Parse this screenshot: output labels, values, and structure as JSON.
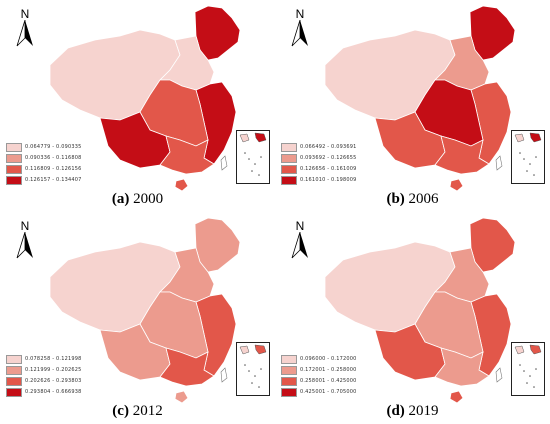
{
  "panels": [
    {
      "id": "a",
      "caption_label": "(a)",
      "caption_year": "2000",
      "legend": [
        {
          "range": "0.064779 - 0.090335",
          "color": "#f6d3cf"
        },
        {
          "range": "0.090336 - 0.116808",
          "color": "#ec9b8e"
        },
        {
          "range": "0.116809 - 0.126156",
          "color": "#e2574a"
        },
        {
          "range": "0.126157 - 0.134407",
          "color": "#c40d16"
        }
      ]
    },
    {
      "id": "b",
      "caption_label": "(b)",
      "caption_year": "2006",
      "legend": [
        {
          "range": "0.066492 - 0.093691",
          "color": "#f6d3cf"
        },
        {
          "range": "0.093692 - 0.126655",
          "color": "#ec9b8e"
        },
        {
          "range": "0.126656 - 0.161009",
          "color": "#e2574a"
        },
        {
          "range": "0.161010 - 0.198009",
          "color": "#c40d16"
        }
      ]
    },
    {
      "id": "c",
      "caption_label": "(c)",
      "caption_year": "2012",
      "legend": [
        {
          "range": "0.078258 - 0.121998",
          "color": "#f6d3cf"
        },
        {
          "range": "0.121999 - 0.202625",
          "color": "#ec9b8e"
        },
        {
          "range": "0.202626 - 0.293803",
          "color": "#e2574a"
        },
        {
          "range": "0.293804 - 0.666938",
          "color": "#c40d16"
        }
      ]
    },
    {
      "id": "d",
      "caption_label": "(d)",
      "caption_year": "2019",
      "legend": [
        {
          "range": "0.096000 - 0.172000",
          "color": "#f6d3cf"
        },
        {
          "range": "0.172001 - 0.258000",
          "color": "#ec9b8e"
        },
        {
          "range": "0.258001 - 0.425000",
          "color": "#e2574a"
        },
        {
          "range": "0.425001 - 0.705000",
          "color": "#c40d16"
        }
      ]
    }
  ],
  "north_label": "N"
}
